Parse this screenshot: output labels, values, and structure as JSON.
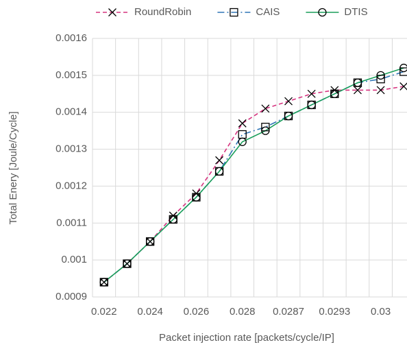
{
  "chart_data": {
    "type": "line",
    "x_label": "Packet injection rate [packets/cycle/IP]",
    "y_label": "Total Enery [Joule/Cycle]",
    "categories": [
      "0.022",
      null,
      "0.024",
      null,
      "0.026",
      null,
      "0.028",
      null,
      "0.0287",
      null,
      "0.0293",
      null,
      "0.03",
      null
    ],
    "series": [
      {
        "name": "RoundRobin",
        "color": "#d6337f",
        "marker": "x",
        "dash": "dashed",
        "values": [
          0.00094,
          0.00099,
          0.00105,
          0.00112,
          0.00118,
          0.00127,
          0.00137,
          0.00141,
          0.00143,
          0.00145,
          0.00146,
          0.00146,
          0.00146,
          0.00147
        ]
      },
      {
        "name": "CAIS",
        "color": "#2e75b6",
        "marker": "square",
        "dash": "dashdot",
        "values": [
          0.00094,
          0.00099,
          0.00105,
          0.00111,
          0.00117,
          0.00124,
          0.00134,
          0.00136,
          0.00139,
          0.00142,
          0.00145,
          0.00148,
          0.00149,
          0.00151
        ]
      },
      {
        "name": "DTIS",
        "color": "#1a9e5a",
        "marker": "circle",
        "dash": "solid",
        "values": [
          0.00094,
          0.00099,
          0.00105,
          0.00111,
          0.00117,
          0.00124,
          0.00132,
          0.00135,
          0.00139,
          0.00142,
          0.00145,
          0.00148,
          0.0015,
          0.00152
        ]
      }
    ],
    "ylim": [
      0.0009,
      0.0016
    ],
    "yticks": [
      0.0009,
      0.001,
      0.0011,
      0.0012,
      0.0013,
      0.0014,
      0.0015,
      0.0016
    ],
    "grid": true,
    "legend": "top"
  }
}
